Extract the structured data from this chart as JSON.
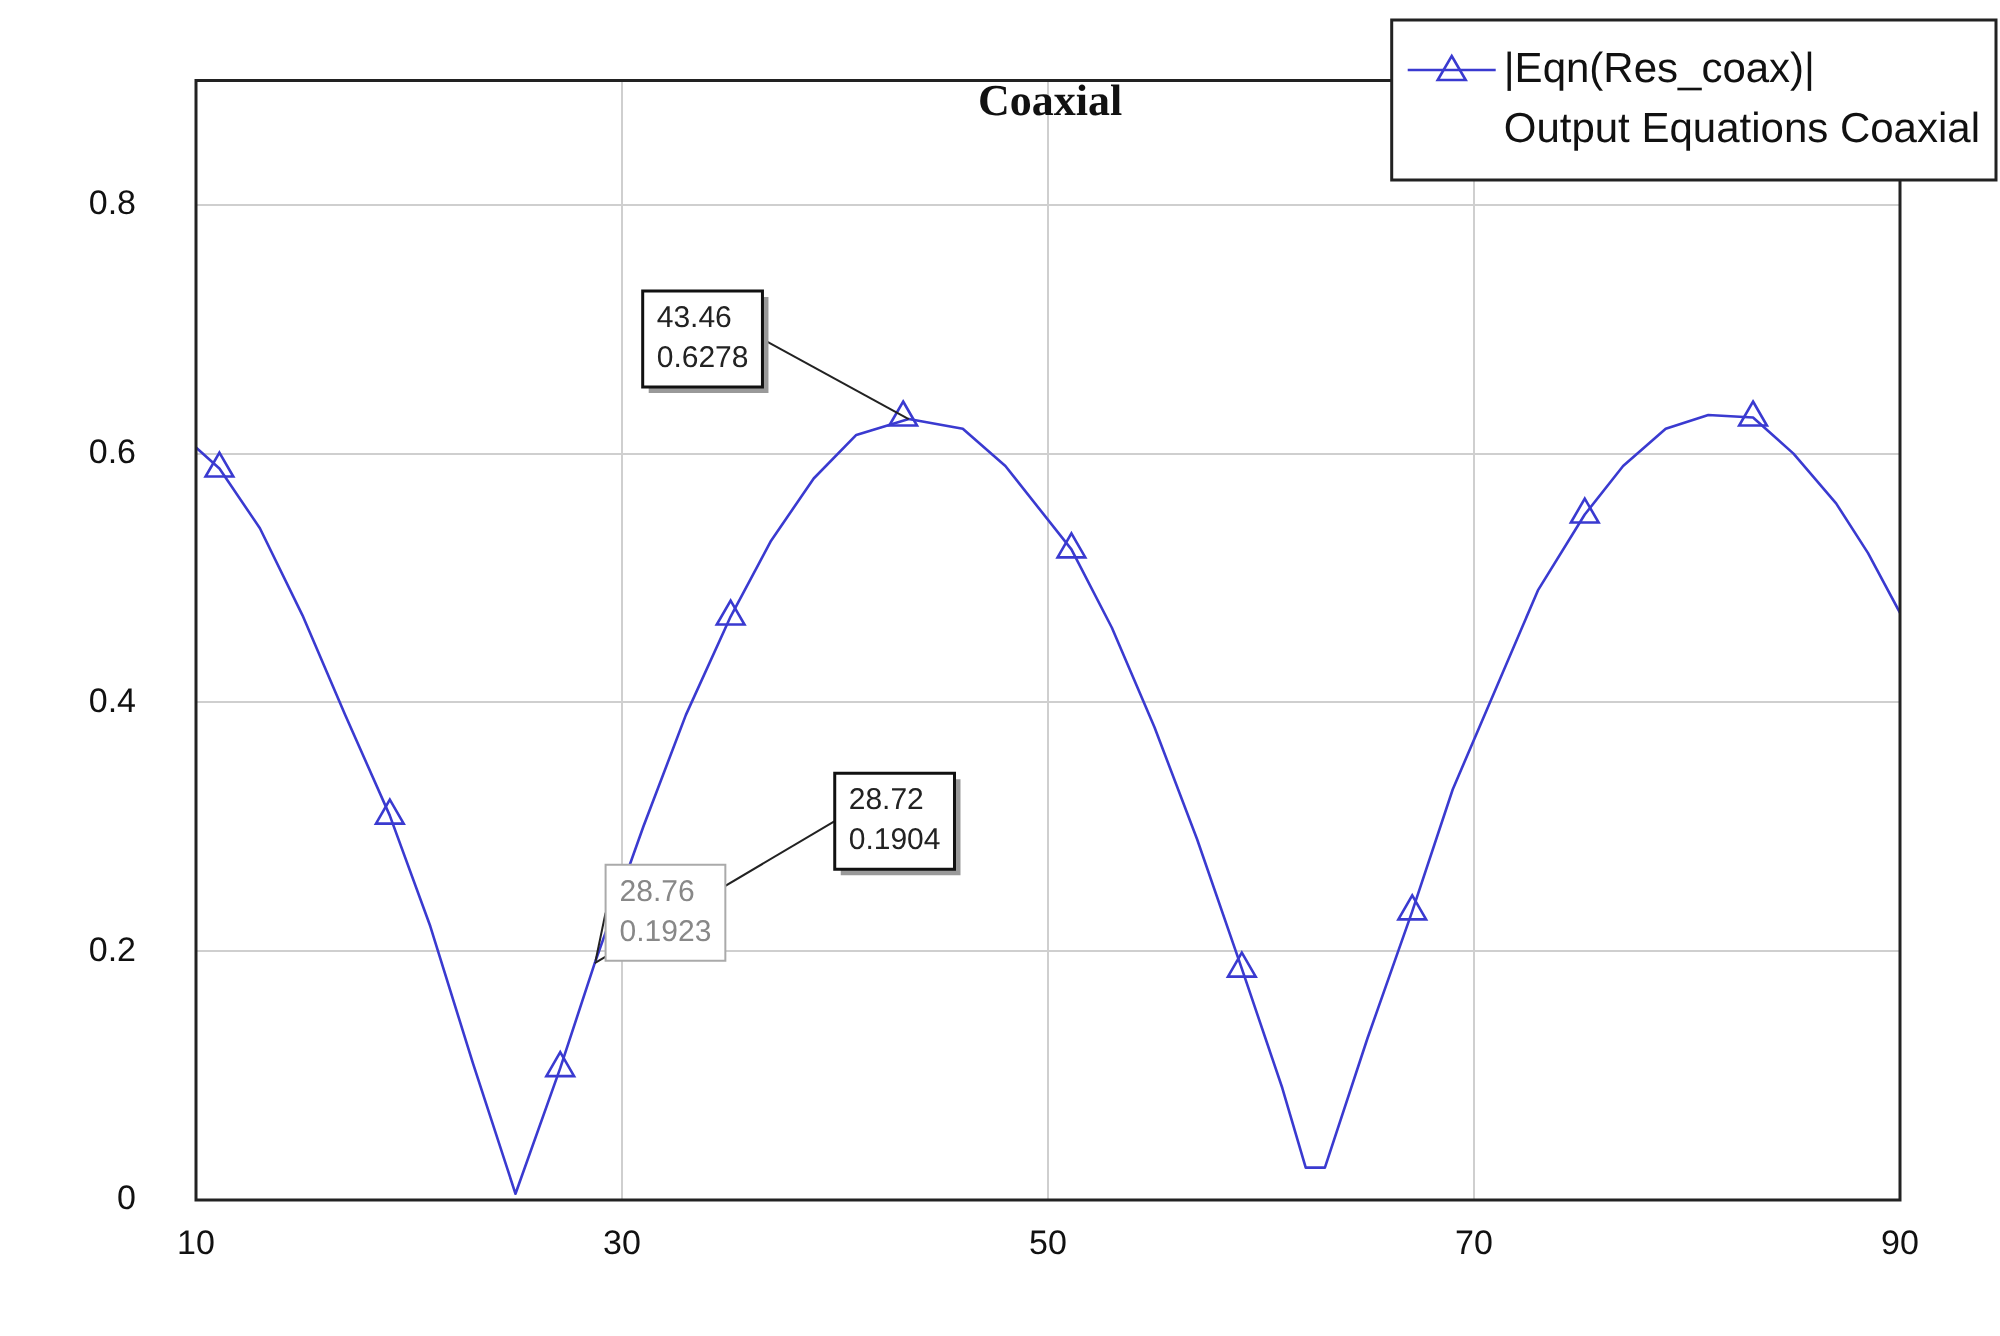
{
  "chart_data": {
    "type": "line",
    "title": "Coaxial",
    "xlim": [
      10,
      90
    ],
    "xticks": [
      10,
      30,
      50,
      70,
      90
    ],
    "ylim": [
      0,
      0.9
    ],
    "yticks": [
      0,
      0.2,
      0.4,
      0.6,
      0.8
    ],
    "grid": true,
    "legend": "top right",
    "series": [
      {
        "name": "|Eqn(Res_coax)|\nOutput Equations Coaxial",
        "color": "#3a3ad0",
        "marker": "none",
        "line_style": "solid",
        "x": [
          10,
          11.1,
          13,
          15,
          17,
          19.1,
          21,
          23,
          25,
          27.1,
          28.72,
          31,
          33,
          35.1,
          37,
          39,
          41,
          43.46,
          46,
          48,
          51.1,
          53,
          55,
          57,
          59.1,
          61,
          62.1,
          63,
          65,
          67.1,
          69,
          71,
          73,
          75.2,
          77,
          79,
          81,
          83.1,
          85,
          87,
          88.5,
          90
        ],
        "values": [
          0.605,
          0.588,
          0.54,
          0.47,
          0.39,
          0.309,
          0.22,
          0.11,
          0.005,
          0.106,
          0.1904,
          0.3,
          0.39,
          0.469,
          0.53,
          0.58,
          0.615,
          0.6278,
          0.62,
          0.59,
          0.523,
          0.46,
          0.38,
          0.29,
          0.186,
          0.09,
          0.026,
          0.026,
          0.13,
          0.232,
          0.33,
          0.41,
          0.49,
          0.551,
          0.59,
          0.62,
          0.631,
          0.629,
          0.6,
          0.56,
          0.52,
          0.472
        ]
      },
      {
        "type": "scatter",
        "color": "#3a3ad0",
        "marker": "triangle",
        "x": [
          11.1,
          19.1,
          27.1,
          35.1,
          43.2,
          51.1,
          59.1,
          67.1,
          75.2,
          83.1
        ],
        "values": [
          0.588,
          0.309,
          0.106,
          0.469,
          0.629,
          0.523,
          0.186,
          0.232,
          0.551,
          0.629
        ]
      }
    ],
    "annotations": [
      {
        "text": "43.46\n0.6278",
        "x": 43.46,
        "y": 0.6278
      },
      {
        "text": "28.72\n0.1904",
        "x": 28.72,
        "y": 0.1904
      },
      {
        "text": "28.76\n0.1923",
        "x": 28.76,
        "y": 0.1923
      }
    ]
  }
}
